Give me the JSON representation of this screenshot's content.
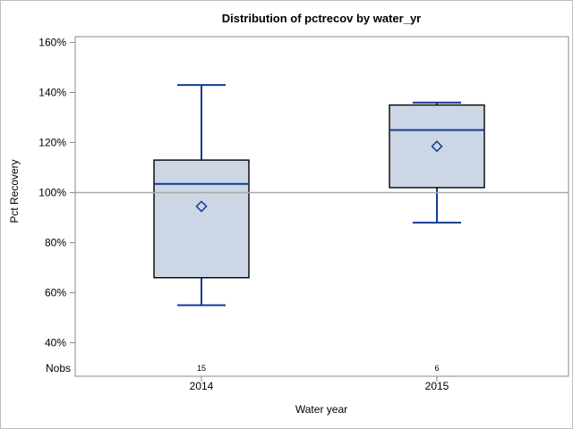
{
  "chart_data": {
    "type": "box",
    "title": "Distribution of pctrecov by water_yr",
    "xlabel": "Water year",
    "ylabel": "Pct Recovery",
    "nobs_label": "Nobs",
    "categories": [
      "2014",
      "2015"
    ],
    "series": [
      {
        "name": "2014",
        "nobs": "15",
        "whisker_low": 55,
        "q1": 66,
        "median": 103.5,
        "q3": 113,
        "whisker_high": 143,
        "mean": 94.5
      },
      {
        "name": "2015",
        "nobs": "6",
        "whisker_low": 88,
        "q1": 102,
        "median": 125,
        "q3": 135,
        "whisker_high": 136,
        "mean": 118.5
      }
    ],
    "y_tick_values": [
      160,
      140,
      120,
      100,
      80,
      60,
      40
    ],
    "y_tick_labels": [
      "160%",
      "140%",
      "120%",
      "100%",
      "80%",
      "60%",
      "40%"
    ],
    "y_axis_min": 40,
    "y_axis_max": 160,
    "reference_line": 100,
    "grid": "off",
    "legend": "none",
    "colors": {
      "box_fill": "#ccd6e4",
      "box_border": "#000000",
      "blue_line": "#123a94",
      "reference_line": "#a9a9a9",
      "axis_line": "#8b8b8b",
      "figure_border": "#bdbdbd"
    }
  }
}
